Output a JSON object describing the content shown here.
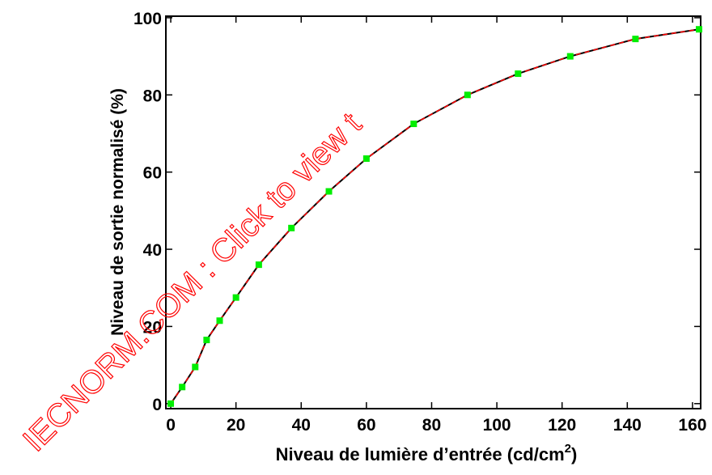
{
  "chart_data": {
    "type": "line",
    "xlabel": [
      "Niveau de lumière d’entrée (cd/cm",
      "2",
      ")"
    ],
    "ylabel": "Niveau de sortie normalisé (%)",
    "watermark": "IECNORM.COM : Click to view t",
    "x": [
      0,
      3.5,
      7.5,
      11,
      15,
      20,
      27,
      37,
      48.5,
      60,
      74.5,
      91,
      106.5,
      122.5,
      142.5,
      162
    ],
    "series": [
      {
        "color": "#000000",
        "dash_color": "#ff0000",
        "marker_color": "#00ee00",
        "values": [
          0,
          4.3,
          9.5,
          16.5,
          21.5,
          27.5,
          36,
          45.5,
          55,
          63.5,
          72.5,
          80,
          85.5,
          90,
          94.5,
          97
        ]
      }
    ],
    "xlim": [
      -1.5,
      162.5
    ],
    "ylim": [
      -1.3,
      100.4
    ],
    "xticks": [
      0,
      20,
      40,
      60,
      80,
      100,
      120,
      140,
      160
    ],
    "yticks": [
      0,
      20,
      40,
      60,
      80,
      100
    ]
  }
}
